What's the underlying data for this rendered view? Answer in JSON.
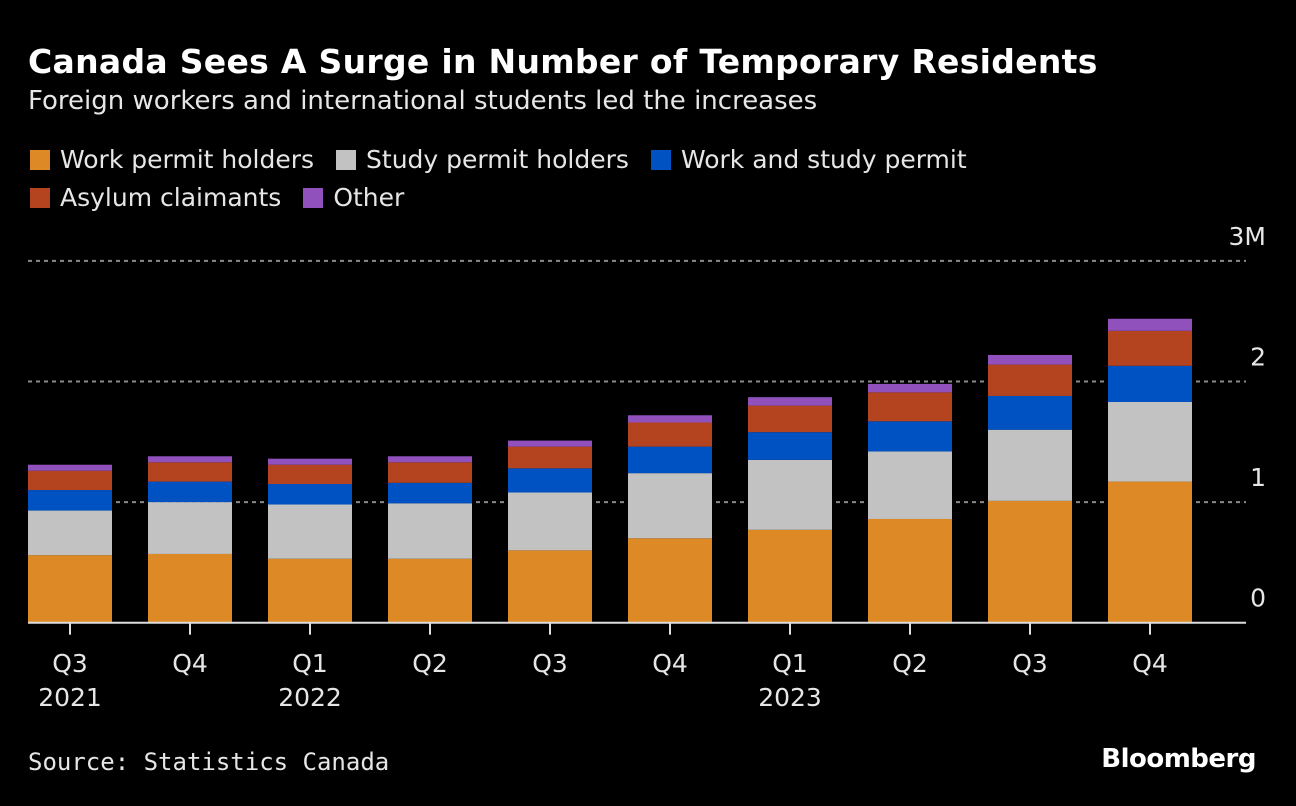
{
  "chart_data": {
    "type": "bar",
    "stacked": true,
    "title": "Canada Sees A Surge in Number of Temporary Residents",
    "subtitle": "Foreign workers and international students led the increases",
    "categories": [
      "Q3 2021",
      "Q4 2021",
      "Q1 2022",
      "Q2 2022",
      "Q3 2022",
      "Q4 2022",
      "Q1 2023",
      "Q2 2023",
      "Q3 2023",
      "Q4 2023"
    ],
    "x_tick_labels": [
      [
        "Q3",
        "2021"
      ],
      [
        "Q4",
        ""
      ],
      [
        "Q1",
        "2022"
      ],
      [
        "Q2",
        ""
      ],
      [
        "Q3",
        ""
      ],
      [
        "Q4",
        ""
      ],
      [
        "Q1",
        "2023"
      ],
      [
        "Q2",
        ""
      ],
      [
        "Q3",
        ""
      ],
      [
        "Q4",
        ""
      ]
    ],
    "series": [
      {
        "name": "Work permit holders",
        "color": "#dd8a26",
        "values": [
          0.56,
          0.57,
          0.53,
          0.53,
          0.6,
          0.7,
          0.77,
          0.86,
          1.01,
          1.17
        ]
      },
      {
        "name": "Study permit holders",
        "color": "#c2c2c2",
        "values": [
          0.37,
          0.43,
          0.45,
          0.46,
          0.48,
          0.54,
          0.58,
          0.56,
          0.59,
          0.66
        ]
      },
      {
        "name": "Work and study permit",
        "color": "#0051c2",
        "values": [
          0.17,
          0.17,
          0.17,
          0.17,
          0.2,
          0.22,
          0.23,
          0.25,
          0.28,
          0.3
        ]
      },
      {
        "name": "Asylum claimants",
        "color": "#b4441f",
        "values": [
          0.16,
          0.16,
          0.16,
          0.17,
          0.18,
          0.2,
          0.22,
          0.24,
          0.26,
          0.29
        ]
      },
      {
        "name": "Other",
        "color": "#9151bd",
        "values": [
          0.05,
          0.05,
          0.05,
          0.05,
          0.05,
          0.06,
          0.07,
          0.07,
          0.08,
          0.1
        ]
      }
    ],
    "ylim": [
      0,
      3
    ],
    "y_unit": "millions",
    "y_ticks": [
      0,
      1,
      2,
      3
    ],
    "y_tick_labels": [
      "0",
      "1",
      "2",
      "3M"
    ],
    "y_axis_position": "right",
    "grid": true,
    "legend_position": "top-left",
    "source": "Source: Statistics Canada",
    "brand": "Bloomberg"
  }
}
